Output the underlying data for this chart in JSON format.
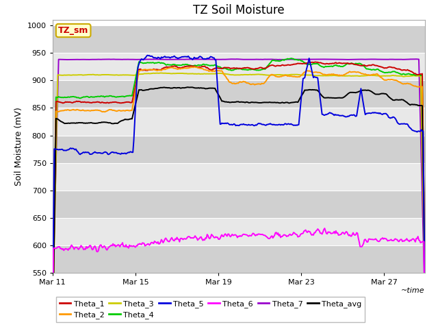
{
  "title": "TZ Soil Moisture",
  "xlabel": "~time",
  "ylabel": "Soil Moisture (mV)",
  "ylim": [
    550,
    1010
  ],
  "yticks": [
    550,
    600,
    650,
    700,
    750,
    800,
    850,
    900,
    950,
    1000
  ],
  "x_tick_labels": [
    "Mar 11",
    "Mar 15",
    "Mar 19",
    "Mar 23",
    "Mar 27"
  ],
  "x_tick_positions": [
    0,
    96,
    192,
    288,
    384
  ],
  "n_points": 432,
  "background_color": "#ffffff",
  "plot_bg_light": "#e8e8e8",
  "plot_bg_dark": "#d0d0d0",
  "series_colors": {
    "Theta_1": "#cc0000",
    "Theta_2": "#ff9900",
    "Theta_3": "#cccc00",
    "Theta_4": "#00cc00",
    "Theta_5": "#0000dd",
    "Theta_6": "#ff00ff",
    "Theta_7": "#9900cc",
    "Theta_avg": "#000000"
  },
  "title_fontsize": 12,
  "axis_label_fontsize": 9,
  "tick_fontsize": 8,
  "legend_fontsize": 8
}
